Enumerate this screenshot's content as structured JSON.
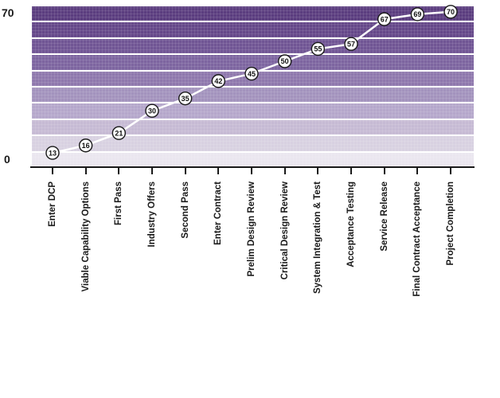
{
  "chart_data": {
    "type": "line",
    "title": "",
    "xlabel": "",
    "ylabel": "",
    "categories": [
      "Enter DCP",
      "Viable Capability Options",
      "First Pass",
      "Industry Offers",
      "Second Pass",
      "Enter Contract",
      "Prelim Design Review",
      "Critical Design Review",
      "System Integration & Test",
      "Acceptance Testing",
      "Service Release",
      "Final Contract Acceptance",
      "Project Completion"
    ],
    "values": [
      13,
      16,
      21,
      30,
      35,
      42,
      45,
      50,
      55,
      57,
      67,
      69,
      70
    ],
    "ylim": [
      0,
      70
    ],
    "y_axis": {
      "top_label": "70",
      "bottom_label": "0"
    },
    "grid": "horizontal-bands",
    "legend": false,
    "band_colors_top_to_bottom": [
      "#5b3d7f",
      "#654789",
      "#705594",
      "#7d65a0",
      "#8f78ad",
      "#a393bd",
      "#b5a7cb",
      "#c6bad4",
      "#d8d1e1",
      "#eae6ef"
    ],
    "line_color": "#ffffff",
    "marker_fill": "#ffffff",
    "marker_border_color": "#1a1a1a",
    "marker_shadow_color": "#cfc9d6",
    "axis_color": "#1a1a1a",
    "label_color": "#1a1a1a"
  }
}
